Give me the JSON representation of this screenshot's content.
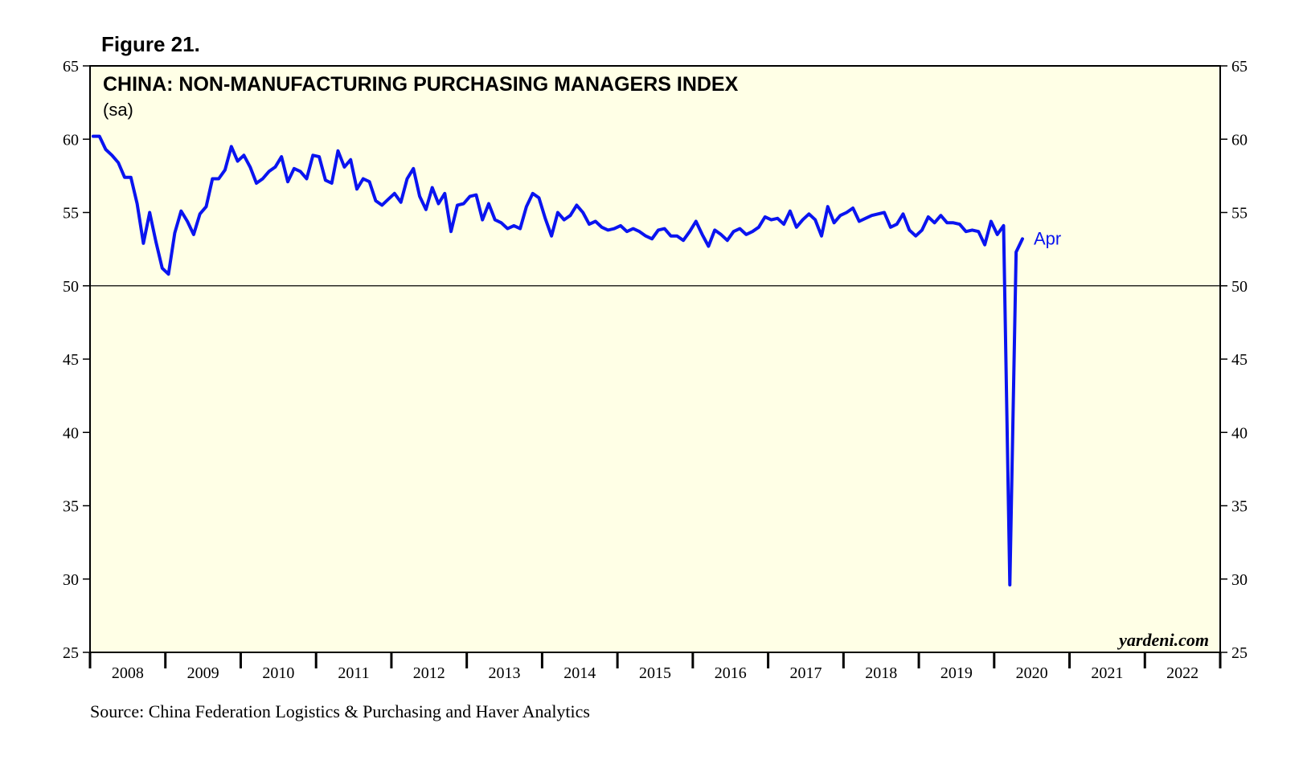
{
  "figure_label": "Figure 21.",
  "source": "Source: China Federation Logistics & Purchasing and Haver Analytics",
  "colors": {
    "plot_background": "#ffffe6",
    "line": "#0a14f0",
    "axis": "#000000",
    "reference_line": "#000000"
  },
  "chart_data": {
    "type": "line",
    "title": "CHINA: NON-MANUFACTURING PURCHASING MANAGERS INDEX",
    "subtitle": "(sa)",
    "watermark": "yardeni.com",
    "ylim": [
      25,
      65
    ],
    "yticks": [
      25,
      30,
      35,
      40,
      45,
      50,
      55,
      60,
      65
    ],
    "y_axis_both_sides": true,
    "reference_line": 50,
    "grid": false,
    "xlim_years": [
      2008,
      2023
    ],
    "x_labels": [
      "2008",
      "2009",
      "2010",
      "2011",
      "2012",
      "2013",
      "2014",
      "2015",
      "2016",
      "2017",
      "2018",
      "2019",
      "2020",
      "2021",
      "2022"
    ],
    "end_label": "Apr",
    "series": [
      {
        "start": "2008-01",
        "frequency": "monthly",
        "values": [
          60.2,
          60.2,
          59.3,
          58.9,
          58.4,
          57.4,
          57.4,
          55.6,
          52.9,
          55.0,
          53.0,
          51.2,
          50.8,
          53.6,
          55.1,
          54.4,
          53.5,
          54.9,
          55.4,
          57.3,
          57.3,
          57.9,
          59.5,
          58.5,
          58.9,
          58.1,
          57.0,
          57.3,
          57.8,
          58.1,
          58.8,
          57.1,
          58.0,
          57.8,
          57.3,
          58.9,
          58.8,
          57.2,
          57.0,
          59.2,
          58.1,
          58.6,
          56.6,
          57.3,
          57.1,
          55.8,
          55.5,
          55.9,
          56.3,
          55.7,
          57.3,
          58.0,
          56.1,
          55.2,
          56.7,
          55.6,
          56.3,
          53.7,
          55.5,
          55.6,
          56.1,
          56.2,
          54.5,
          55.6,
          54.5,
          54.3,
          53.9,
          54.1,
          53.9,
          55.4,
          56.3,
          56.0,
          54.6,
          53.4,
          55.0,
          54.5,
          54.8,
          55.5,
          55.0,
          54.2,
          54.4,
          54.0,
          53.8,
          53.9,
          54.1,
          53.7,
          53.9,
          53.7,
          53.4,
          53.2,
          53.8,
          53.9,
          53.4,
          53.4,
          53.1,
          53.7,
          54.4,
          53.5,
          52.7,
          53.8,
          53.5,
          53.1,
          53.7,
          53.9,
          53.5,
          53.7,
          54.0,
          54.7,
          54.5,
          54.6,
          54.2,
          55.1,
          54.0,
          54.5,
          54.9,
          54.5,
          53.4,
          55.4,
          54.3,
          54.8,
          55.0,
          55.3,
          54.4,
          54.6,
          54.8,
          54.9,
          55.0,
          54.0,
          54.2,
          54.9,
          53.8,
          53.4,
          53.8,
          54.7,
          54.3,
          54.8,
          54.3,
          54.3,
          54.2,
          53.7,
          53.8,
          53.7,
          52.8,
          54.4,
          53.5,
          54.1,
          29.6,
          52.3,
          53.2
        ]
      }
    ]
  }
}
